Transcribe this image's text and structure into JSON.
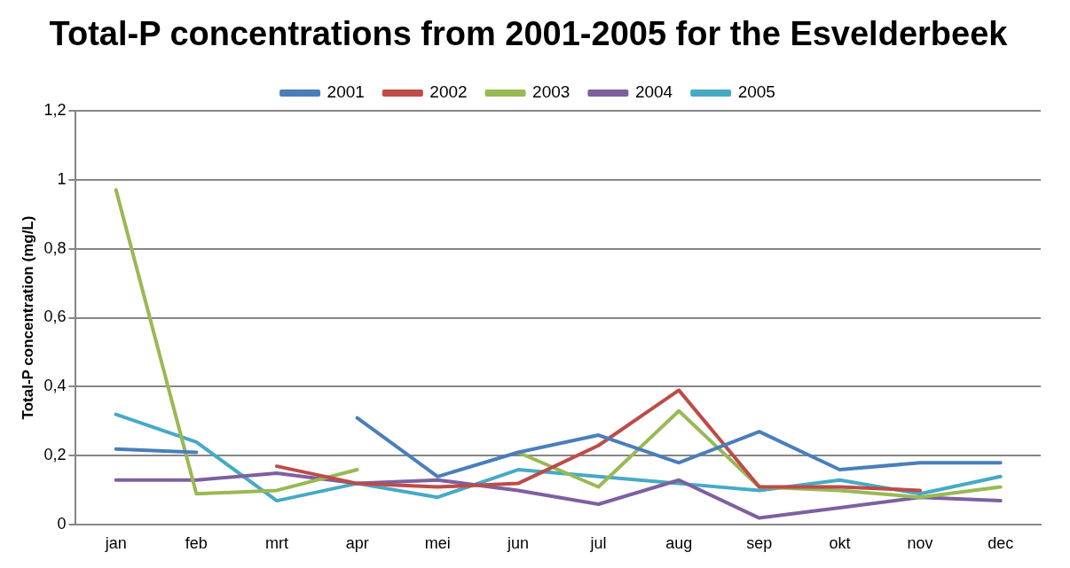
{
  "chart_data": {
    "type": "line",
    "title": "Total-P concentrations from 2001-2005 for the Esvelderbeek",
    "ylabel": "Total-P concentration (mg/L)",
    "categories": [
      "jan",
      "feb",
      "mrt",
      "apr",
      "mei",
      "jun",
      "jul",
      "aug",
      "sep",
      "okt",
      "nov",
      "dec"
    ],
    "series": [
      {
        "name": "2001",
        "color": "#4a7ebb",
        "values": [
          0.22,
          0.21,
          null,
          0.31,
          0.14,
          0.21,
          0.26,
          0.18,
          0.27,
          0.16,
          0.18,
          0.18
        ]
      },
      {
        "name": "2002",
        "color": "#be4b48",
        "values": [
          null,
          null,
          0.17,
          0.12,
          0.11,
          0.12,
          0.23,
          0.39,
          0.11,
          0.11,
          0.1,
          null
        ]
      },
      {
        "name": "2003",
        "color": "#98b954",
        "values": [
          0.97,
          0.09,
          0.1,
          0.16,
          null,
          0.21,
          0.11,
          0.33,
          0.11,
          0.1,
          0.08,
          0.11
        ]
      },
      {
        "name": "2004",
        "color": "#7d60a0",
        "values": [
          0.13,
          0.13,
          0.15,
          0.12,
          0.13,
          0.1,
          0.06,
          0.13,
          0.02,
          0.05,
          0.08,
          0.07
        ]
      },
      {
        "name": "2005",
        "color": "#46aac5",
        "values": [
          0.32,
          0.24,
          0.07,
          0.12,
          0.08,
          0.16,
          0.14,
          0.12,
          0.1,
          0.13,
          0.09,
          0.14
        ]
      }
    ],
    "ylim": [
      0,
      1.2
    ],
    "yticks": [
      0,
      {
        "value": 0.2,
        "label": "0,2"
      },
      {
        "value": 0.4,
        "label": "0,4"
      },
      {
        "value": 0.6,
        "label": "0,6"
      },
      {
        "value": 0.8,
        "label": "0,8"
      },
      1,
      {
        "value": 1.2,
        "label": "1,2"
      }
    ],
    "grid": "y",
    "legend": "top",
    "marker": "none",
    "line_style": "solid"
  }
}
